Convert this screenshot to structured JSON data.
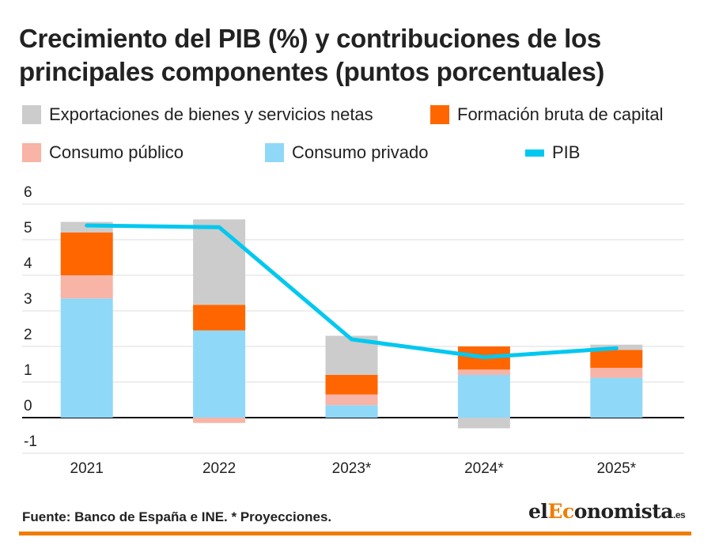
{
  "title": "Crecimiento del PIB (%) y contribuciones de los principales componentes (puntos porcentuales)",
  "legend": [
    {
      "label": "Exportaciones de bienes y servicios netas",
      "color": "#cccccc",
      "kind": "box"
    },
    {
      "label": "Formación bruta de capital",
      "color": "#ff6600",
      "kind": "box"
    },
    {
      "label": "Consumo público",
      "color": "#f8b4a6",
      "kind": "box"
    },
    {
      "label": "Consumo privado",
      "color": "#8fd8f8",
      "kind": "box"
    },
    {
      "label": "PIB",
      "color": "#00c8f0",
      "kind": "line"
    }
  ],
  "chart_data": {
    "type": "bar",
    "stacked": true,
    "categories": [
      "2021",
      "2022",
      "2023*",
      "2024*",
      "2025*"
    ],
    "ylim": [
      -1,
      6
    ],
    "yticks": [
      "6",
      "5",
      "4",
      "3",
      "2",
      "1",
      "0",
      "-1"
    ],
    "grid": true,
    "legend_position": "top",
    "series": [
      {
        "name": "Consumo privado",
        "color": "#8fd8f8",
        "values": [
          3.35,
          2.45,
          0.35,
          1.2,
          1.12
        ]
      },
      {
        "name": "Consumo público",
        "color": "#f8b4a6",
        "values": [
          0.65,
          -0.15,
          0.3,
          0.15,
          0.28
        ]
      },
      {
        "name": "Formación bruta de capital",
        "color": "#ff6600",
        "values": [
          1.2,
          0.72,
          0.55,
          0.65,
          0.5
        ]
      },
      {
        "name": "Exportaciones de bienes y servicios netas",
        "color": "#cccccc",
        "values": [
          0.3,
          2.4,
          1.1,
          -0.3,
          0.15
        ]
      }
    ],
    "line": {
      "name": "PIB",
      "color": "#00c8f0",
      "values": [
        5.4,
        5.35,
        2.2,
        1.7,
        1.95
      ]
    }
  },
  "footer": "Fuente: Banco de España e INE. * Proyecciones.",
  "brand": {
    "prefix": "el",
    "accent": "Ec",
    "rest": "onomista",
    "tld": ".es"
  }
}
